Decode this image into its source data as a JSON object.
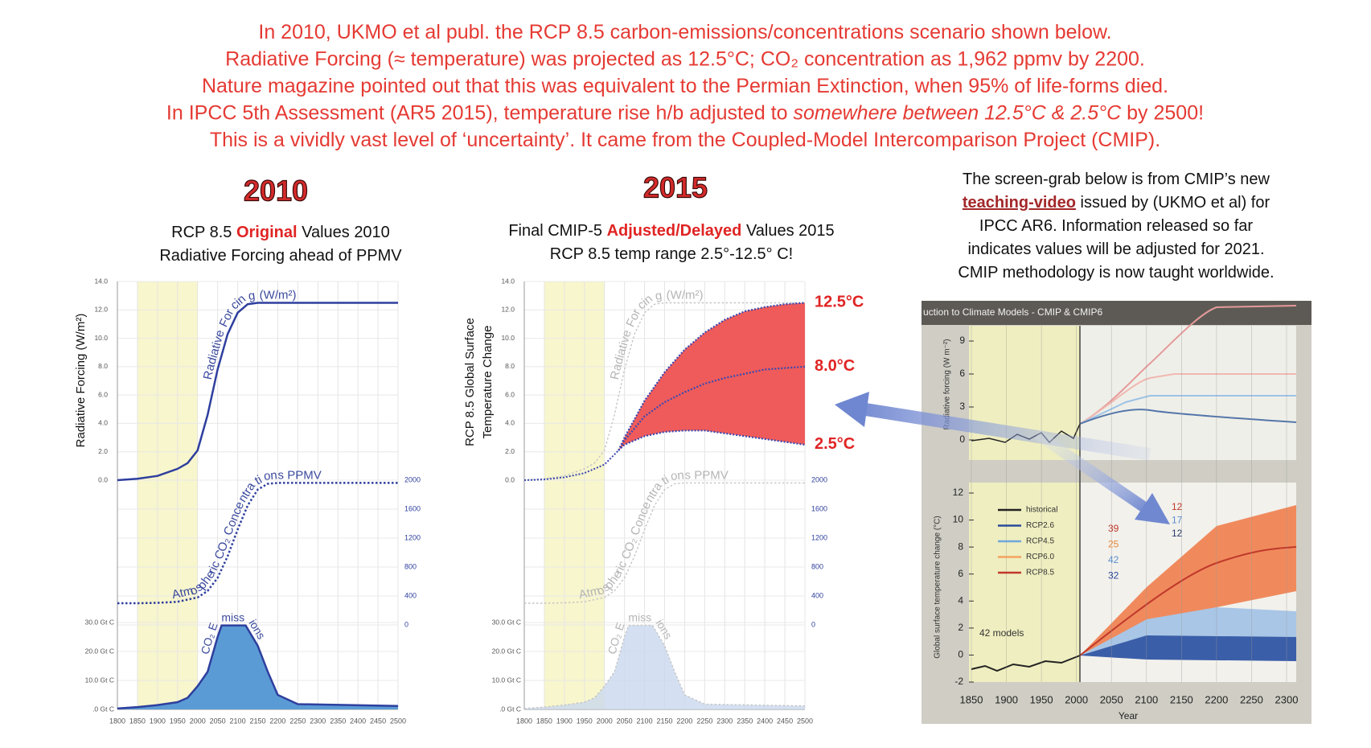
{
  "header": {
    "lines": [
      [
        "In 2010, UKMO et al publ. the RCP 8.5 carbon-emissions/concentrations scenario shown below."
      ],
      [
        "Radiative Forcing (≈ temperature) was projected as 12.5°C; CO₂ concentration as 1,962 ppmv by 2200."
      ],
      [
        "Nature magazine pointed out that this was equivalent to the Permian Extinction, when 95% of life-forms died."
      ],
      [
        "In IPCC 5th Assessment (AR5 2015), temperature rise h/b adjusted to ",
        {
          "text": "somewhere between 12.5°C & 2.5°C",
          "style": "italic"
        },
        " by 2500!"
      ],
      [
        "This is a vividly vast level of ‘uncertainty’. It came from the Coupled-Model Intercomparison Project (CMIP)."
      ]
    ]
  },
  "panels": [
    {
      "heading": "2010",
      "subtitle": [
        [
          "RCP 8.5 ",
          {
            "text": "Original",
            "style": "highlight"
          },
          " Values 2010"
        ],
        [
          "Radiative Forcing ahead of PPMV"
        ]
      ]
    },
    {
      "heading": "2015",
      "subtitle": [
        [
          "Final CMIP-5 ",
          {
            "text": "Adjusted/Delayed",
            "style": "highlight"
          },
          " Values 2015"
        ],
        [
          "RCP 8.5  temp range 2.5°-12.5° C!"
        ]
      ]
    }
  ],
  "note": {
    "lines": [
      [
        "The screen-grab below is from CMIP’s new"
      ],
      [
        {
          "text": "teaching-video",
          "style": "emphasis"
        },
        " issued by (UKMO et al) for"
      ],
      [
        "IPCC AR6. Information released so far"
      ],
      [
        "indicates values will be adjusted for 2021."
      ],
      [
        "CMIP methodology is now taught worldwide."
      ]
    ]
  },
  "chart_data": [
    {
      "type": "line",
      "y_label": "Radiative Forcing (W/m²)",
      "grid": true,
      "shaded_x": [
        1850,
        2000
      ],
      "shade_color": "#f8f6cc",
      "xlim": [
        1800,
        2500
      ],
      "ylim": [
        0,
        14
      ],
      "yticks": [
        {
          "value": 0,
          "label": "0.0"
        },
        {
          "value": 2,
          "label": "2.0"
        },
        {
          "value": 4,
          "label": "4.0"
        },
        {
          "value": 6,
          "label": "6.0"
        },
        {
          "value": 8,
          "label": "8.0"
        },
        {
          "value": 10,
          "label": "10.0"
        },
        {
          "value": 12,
          "label": "12.0"
        },
        {
          "value": 14,
          "label": "14.0"
        }
      ],
      "series": [
        {
          "name": "Radiative Forcing (W/m²)",
          "color": "#2e3f9e",
          "x": [
            1800,
            1850,
            1900,
            1950,
            1975,
            2000,
            2025,
            2050,
            2075,
            2100,
            2125,
            2150,
            2200,
            2250,
            2300,
            2500
          ],
          "values": [
            0,
            0.1,
            0.3,
            0.8,
            1.2,
            2.1,
            4.6,
            7.8,
            10.3,
            11.8,
            12.4,
            12.5,
            12.5,
            12.5,
            12.5,
            12.5
          ]
        }
      ]
    },
    {
      "type": "line",
      "grid": true,
      "dashed": true,
      "xlim": [
        1800,
        2500
      ],
      "ylim": [
        0,
        2000
      ],
      "yticks": [
        0,
        400,
        800,
        1200,
        1600,
        2000
      ],
      "series": [
        {
          "name": "Atmospheric CO₂ Concentrations PPMV",
          "color": "#2e3f9e",
          "x": [
            1800,
            1850,
            1900,
            1950,
            2000,
            2025,
            2050,
            2075,
            2100,
            2125,
            2150,
            2175,
            2200,
            2250,
            2500
          ],
          "values": [
            300,
            300,
            305,
            320,
            380,
            470,
            650,
            950,
            1320,
            1650,
            1870,
            1950,
            1962,
            1962,
            1962
          ]
        }
      ]
    },
    {
      "type": "area",
      "grid": true,
      "xlim": [
        1800,
        2500
      ],
      "ylim": [
        0,
        30
      ],
      "xticks": [
        1800,
        1850,
        1900,
        1950,
        2000,
        2050,
        2100,
        2150,
        2200,
        2250,
        2300,
        2350,
        2400,
        2450,
        2500
      ],
      "yticks": [
        {
          "value": 0,
          "label": ".0 Gt C"
        },
        {
          "value": 10,
          "label": "10.0 Gt C"
        },
        {
          "value": 20,
          "label": "20.0 Gt C"
        },
        {
          "value": 30,
          "label": "30.0 Gt C"
        }
      ],
      "series": [
        {
          "name": "CO₂ Emissions",
          "color": "#5b9bd5",
          "x": [
            1800,
            1850,
            1900,
            1950,
            1975,
            2000,
            2025,
            2050,
            2060,
            2120,
            2150,
            2175,
            2200,
            2250,
            2500
          ],
          "values": [
            0.3,
            0.8,
            1.5,
            2.5,
            4,
            8,
            13,
            25,
            29,
            29,
            22,
            13,
            5,
            1.8,
            1.2
          ]
        }
      ]
    },
    {
      "type": "range",
      "y_label": [
        "RCP 8.5 Global Surface",
        "Temperature Change"
      ],
      "xlim": [
        1800,
        2500
      ],
      "ylim": [
        0,
        14
      ],
      "fill_color": "#ef5b5b",
      "line_color": "#3a48b0",
      "label_color": "#e02424",
      "yticks": [
        {
          "value": 0,
          "label": "0.0"
        },
        {
          "value": 2,
          "label": "2.0"
        },
        {
          "value": 4,
          "label": "4.0"
        },
        {
          "value": 6,
          "label": "6.0"
        },
        {
          "value": 8,
          "label": "8.0"
        },
        {
          "value": 10,
          "label": "10.0"
        },
        {
          "value": 12,
          "label": "12.0"
        },
        {
          "value": 14,
          "label": "14.0"
        }
      ],
      "baseline_x": [
        1800,
        1850,
        1900,
        1950,
        2000,
        2035
      ],
      "baseline": [
        0,
        0.05,
        0.2,
        0.5,
        1.1,
        2.1
      ],
      "x": [
        2035,
        2050,
        2100,
        2150,
        2200,
        2250,
        2300,
        2350,
        2400,
        2450,
        2500
      ],
      "series": [
        {
          "values": [
            2.1,
            3.0,
            5.6,
            7.6,
            9.2,
            10.4,
            11.3,
            11.9,
            12.2,
            12.4,
            12.5
          ],
          "end_label": "12.5°C"
        },
        {
          "values": [
            2.1,
            2.8,
            4.5,
            5.5,
            6.2,
            6.8,
            7.2,
            7.5,
            7.8,
            7.9,
            8.0
          ],
          "end_label": "8.0°C"
        },
        {
          "values": [
            2.1,
            2.5,
            3.1,
            3.4,
            3.5,
            3.5,
            3.3,
            3.1,
            2.9,
            2.7,
            2.5
          ],
          "end_label": "2.5°C"
        }
      ]
    }
  ],
  "screenshot": {
    "title": "uction to Climate Models - CMIP & CMIP6",
    "x_label": "Year",
    "xlim": [
      1850,
      2300
    ],
    "xticks": [
      1850,
      1900,
      1950,
      2000,
      2050,
      2100,
      2150,
      2200,
      2250,
      2300
    ],
    "top": {
      "y_label": "Radiative forcing (W m⁻²)",
      "ylim": [
        0,
        9
      ],
      "yticks": [
        0,
        3,
        6,
        9
      ]
    },
    "bottom": {
      "y_label": "Global surface temperature change (°C)",
      "ylim": [
        -2,
        12
      ],
      "yticks": [
        -2,
        0,
        2,
        4,
        6,
        8,
        10,
        12
      ]
    },
    "legend": [
      {
        "name": "historical",
        "color": "#222222"
      },
      {
        "name": "RCP2.6",
        "color": "#2b4a9a"
      },
      {
        "name": "RCP4.5",
        "color": "#6fa8dc"
      },
      {
        "name": "RCP6.0",
        "color": "#f4a460"
      },
      {
        "name": "RCP8.5",
        "color": "#c0392b"
      }
    ],
    "model_counts": [
      {
        "count": 39,
        "color": "#c0392b"
      },
      {
        "count": 25,
        "color": "#e8893a"
      },
      {
        "count": 42,
        "color": "#5b8fd0"
      },
      {
        "count": 32,
        "color": "#2b4a9a"
      }
    ],
    "model_counts_2": [
      {
        "count": 12,
        "color": "#c0392b"
      },
      {
        "count": 17,
        "color": "#5b8fd0"
      },
      {
        "count": 12,
        "color": "#2b3a6a"
      }
    ],
    "models_note": "42 models"
  }
}
